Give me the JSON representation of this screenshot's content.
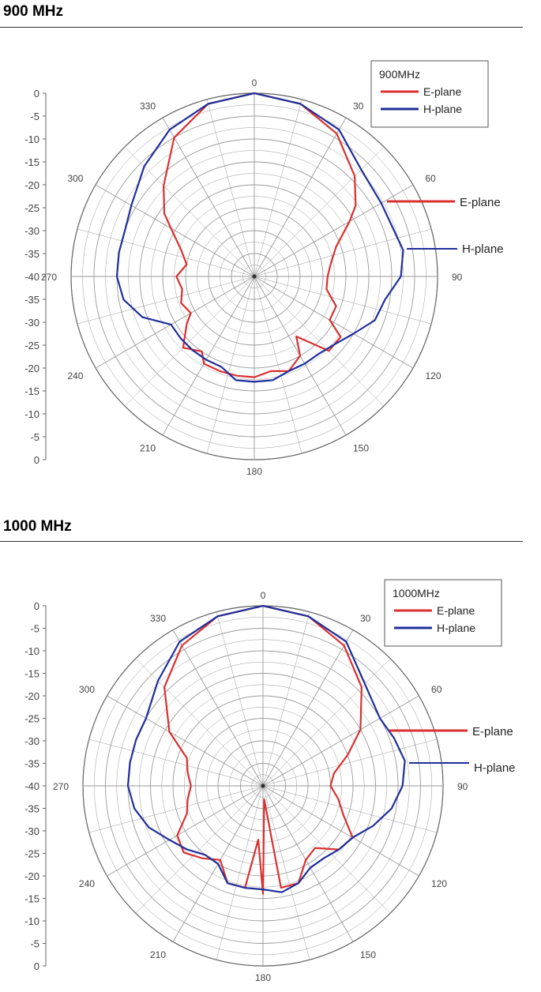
{
  "colors": {
    "e_plane": "#d93030",
    "h_plane": "#1f2f9a",
    "grid": "#9a9a9a"
  },
  "charts": [
    {
      "section_title": "900 MHz"
    },
    {
      "section_title": "1000 MHz"
    }
  ],
  "chart_data": [
    {
      "type": "polar-line",
      "title": "900 MHz",
      "legend_title": "900MHz",
      "legend_position": "top-right",
      "radial_ticks": [
        "0",
        "-5",
        "-10",
        "-15",
        "-20",
        "-25",
        "-30",
        "-35",
        "-40",
        "-35",
        "-30",
        "-25",
        "-20",
        "-15",
        "-10",
        "-5",
        "0"
      ],
      "rlim": [
        -40,
        0
      ],
      "angle_ticks": [
        "0",
        "30",
        "60",
        "90",
        "120",
        "150",
        "180",
        "210",
        "240",
        "270",
        "300",
        "330"
      ],
      "callouts": [
        "E-plane",
        "H-plane"
      ],
      "grid": true,
      "series": [
        {
          "name": "E-plane",
          "angles": [
            0,
            15,
            30,
            45,
            55,
            60,
            70,
            80,
            90,
            100,
            110,
            120,
            125,
            135,
            145,
            150,
            160,
            170,
            180,
            190,
            200,
            210,
            215,
            225,
            235,
            240,
            250,
            260,
            270,
            280,
            290,
            300,
            305,
            315,
            330,
            345,
            360
          ],
          "values": [
            0,
            -1,
            -4,
            -9,
            -13,
            -16,
            -21,
            -23,
            -24,
            -24,
            -21,
            -21,
            -17,
            -17,
            -24,
            -20,
            -18,
            -19,
            -18,
            -18,
            -18,
            -18,
            -20,
            -18,
            -22,
            -24,
            -23,
            -24,
            -23,
            -25,
            -23,
            -19,
            -16,
            -12,
            -5,
            -1,
            0
          ]
        },
        {
          "name": "H-plane",
          "angles": [
            0,
            15,
            30,
            45,
            60,
            70,
            80,
            90,
            100,
            110,
            120,
            130,
            140,
            150,
            160,
            170,
            180,
            190,
            200,
            210,
            220,
            230,
            240,
            250,
            260,
            270,
            280,
            290,
            300,
            315,
            330,
            345,
            360
          ],
          "values": [
            0,
            -1,
            -3,
            -7,
            -8,
            -8,
            -7,
            -8,
            -11,
            -12,
            -15,
            -17,
            -18,
            -18,
            -18,
            -17,
            -17,
            -17,
            -19,
            -19,
            -19,
            -19,
            -19,
            -14,
            -11,
            -10,
            -10,
            -10,
            -9,
            -6,
            -3,
            -1,
            0
          ]
        }
      ]
    },
    {
      "type": "polar-line",
      "title": "1000 MHz",
      "legend_title": "1000MHz",
      "legend_position": "top-right",
      "radial_ticks": [
        "0",
        "-5",
        "-10",
        "-15",
        "-20",
        "-25",
        "-30",
        "-35",
        "-40",
        "-35",
        "-30",
        "-25",
        "-20",
        "-15",
        "-10",
        "-5",
        "0"
      ],
      "rlim": [
        -40,
        0
      ],
      "angle_ticks": [
        "0",
        "30",
        "60",
        "90",
        "120",
        "150",
        "180",
        "210",
        "240",
        "270",
        "300",
        "330"
      ],
      "callouts": [
        "E-plane",
        "H-plane"
      ],
      "grid": true,
      "series": [
        {
          "name": "E-plane",
          "angles": [
            0,
            15,
            30,
            45,
            60,
            70,
            80,
            90,
            100,
            110,
            120,
            130,
            140,
            150,
            160,
            170,
            175,
            180,
            185,
            190,
            200,
            210,
            220,
            230,
            240,
            250,
            260,
            270,
            280,
            290,
            300,
            315,
            330,
            345,
            360
          ],
          "values": [
            0,
            -1,
            -4,
            -9,
            -15,
            -20,
            -24,
            -25,
            -23,
            -21,
            -17,
            -18,
            -22,
            -21,
            -17,
            -17,
            -37,
            -16,
            -28,
            -17,
            -17,
            -21,
            -19,
            -17,
            -18,
            -22,
            -23,
            -24,
            -23,
            -22,
            -16,
            -9,
            -4,
            -1,
            0
          ]
        },
        {
          "name": "H-plane",
          "angles": [
            0,
            15,
            30,
            45,
            60,
            70,
            80,
            90,
            100,
            110,
            120,
            130,
            140,
            150,
            160,
            170,
            180,
            190,
            200,
            210,
            220,
            230,
            240,
            250,
            260,
            270,
            280,
            290,
            300,
            315,
            330,
            345,
            360
          ],
          "values": [
            0,
            -1,
            -3,
            -8,
            -10,
            -9,
            -8,
            -9,
            -11,
            -14,
            -17,
            -18,
            -19,
            -19,
            -17,
            -16,
            -17,
            -17,
            -17,
            -20,
            -20,
            -18,
            -16,
            -13,
            -11,
            -10,
            -10,
            -10,
            -10,
            -7,
            -3,
            -1,
            0
          ]
        }
      ]
    }
  ]
}
